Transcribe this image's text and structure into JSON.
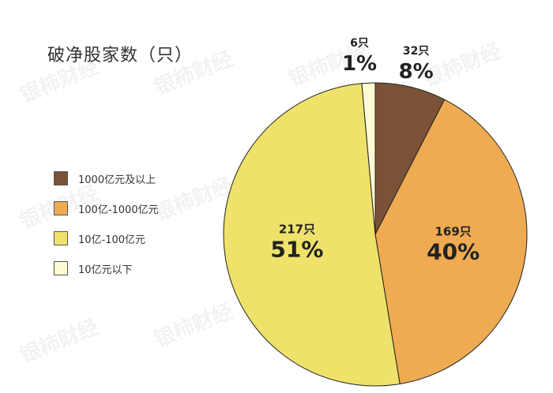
{
  "chart_data": {
    "type": "pie",
    "title": "破净股家数（只）",
    "categories": [
      "1000亿元及以上",
      "100亿-1000亿元",
      "10亿-100亿元",
      "10亿元以下"
    ],
    "values": [
      32,
      169,
      217,
      6
    ],
    "count_labels": [
      "32只",
      "169只",
      "217只",
      "6只"
    ],
    "percent_labels": [
      "8%",
      "40%",
      "51%",
      "1%"
    ],
    "colors": [
      "#7a5238",
      "#eeab52",
      "#efe26a",
      "#fdfbd4"
    ],
    "legend_position": "left"
  },
  "watermark": "银柿财经"
}
